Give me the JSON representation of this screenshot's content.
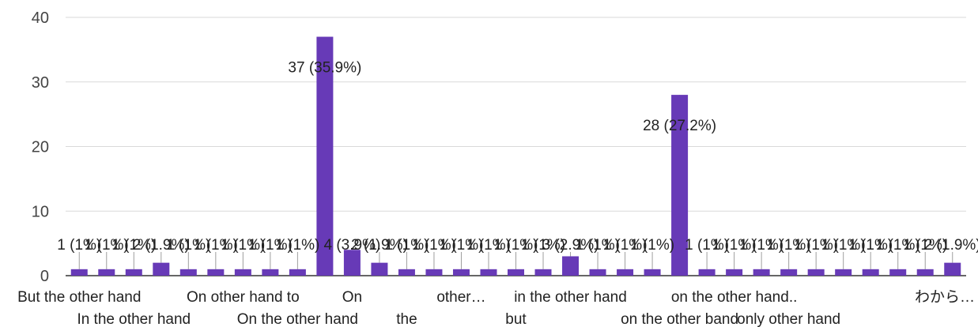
{
  "chart_data": {
    "type": "bar",
    "categories": [
      "But the other hand",
      "",
      "In the other hand",
      "",
      "",
      "",
      "On other hand to",
      "",
      "On the other hand",
      "",
      "On",
      "",
      "the",
      "",
      "other…",
      "",
      "but",
      "",
      "in the other hand",
      "",
      "",
      "",
      "on the other band",
      "",
      "on the other hand..",
      "",
      "only other hand",
      "",
      "",
      "",
      "",
      "",
      "わから…"
    ],
    "values": [
      1,
      1,
      1,
      2,
      1,
      1,
      1,
      1,
      1,
      37,
      4,
      2,
      1,
      1,
      1,
      1,
      1,
      1,
      3,
      1,
      1,
      1,
      28,
      1,
      1,
      1,
      1,
      1,
      1,
      1,
      1,
      1,
      2
    ],
    "data_labels": [
      "1 (1%)",
      "1 (1%)",
      "1 (1%)",
      "2 (1.9%)",
      "1 (1%)",
      "1 (1%)",
      "1 (1%)",
      "1 (1%)",
      "1 (1%)",
      "37 (35.9%)",
      "4 (3.9%)",
      "2 (1.9%)",
      "1 (1%)",
      "1 (1%)",
      "1 (1%)",
      "1 (1%)",
      "1 (1%)",
      "1 (1%)",
      "3 (2.9%)",
      "1 (1%)",
      "1 (1%)",
      "1 (1%)",
      "28 (27.2%)",
      "1 (1%)",
      "1 (1%)",
      "1 (1%)",
      "1 (1%)",
      "1 (1%)",
      "1 (1%)",
      "1 (1%)",
      "1 (1%)",
      "1 (1%)",
      "2 (1.9%)"
    ],
    "yticks": [
      "0",
      "10",
      "20",
      "30",
      "40"
    ],
    "ylim": [
      0,
      40
    ],
    "grid": true,
    "bar_color": "#673ab7",
    "title": "",
    "xlabel": "",
    "ylabel": ""
  }
}
